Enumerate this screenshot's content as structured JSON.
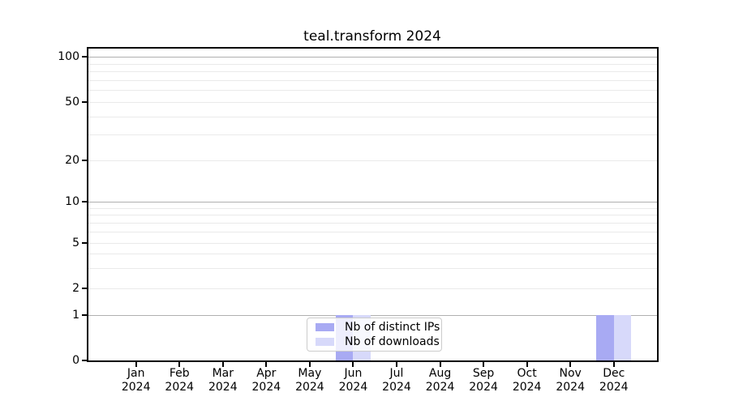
{
  "chart_data": {
    "type": "bar",
    "title": "teal.transform 2024",
    "categories": [
      {
        "month": "Jan",
        "year": "2024"
      },
      {
        "month": "Feb",
        "year": "2024"
      },
      {
        "month": "Mar",
        "year": "2024"
      },
      {
        "month": "Apr",
        "year": "2024"
      },
      {
        "month": "May",
        "year": "2024"
      },
      {
        "month": "Jun",
        "year": "2024"
      },
      {
        "month": "Jul",
        "year": "2024"
      },
      {
        "month": "Aug",
        "year": "2024"
      },
      {
        "month": "Sep",
        "year": "2024"
      },
      {
        "month": "Oct",
        "year": "2024"
      },
      {
        "month": "Nov",
        "year": "2024"
      },
      {
        "month": "Dec",
        "year": "2024"
      }
    ],
    "series": [
      {
        "name": "Nb of distinct IPs",
        "color": "#a8aaf3",
        "values": [
          0,
          0,
          0,
          0,
          0,
          1,
          0,
          0,
          0,
          0,
          0,
          1
        ]
      },
      {
        "name": "Nb of downloads",
        "color": "#d7d9fa",
        "values": [
          0,
          0,
          0,
          0,
          0,
          1,
          0,
          0,
          0,
          0,
          0,
          1
        ]
      }
    ],
    "xlabel": "",
    "ylabel": "",
    "y_ticks": [
      100,
      50,
      20,
      10,
      5,
      2,
      1,
      0
    ],
    "ylim": [
      0,
      115
    ],
    "yscale": "log above 1, linear between 0 and 1",
    "grid": "horizontal major and minor gridlines",
    "legend_position": "lower center"
  },
  "colors": {
    "background": "#ffffff",
    "axis": "#000000",
    "grid_major": "#b0b0b0",
    "grid_minor": "#eaeaea",
    "legend_border": "#cccccc"
  }
}
